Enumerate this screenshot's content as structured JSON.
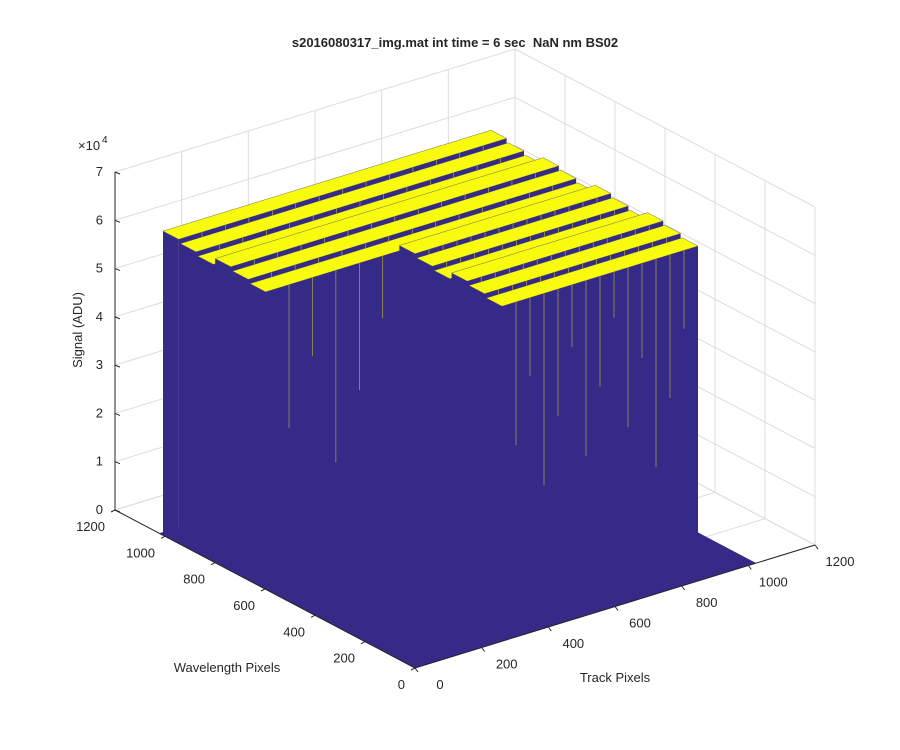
{
  "chart_data": {
    "type": "surface3d",
    "title": "s2016080317_img.mat int time = 6 sec  NaN nm BS02",
    "xlabel": "Track Pixels",
    "ylabel": "Wavelength Pixels",
    "zlabel": "Signal (ADU)",
    "z_exponent_base": "×10",
    "z_exponent": "4",
    "xlim": [
      0,
      1200
    ],
    "xticks": [
      0,
      200,
      400,
      600,
      800,
      1000,
      1200
    ],
    "ylim": [
      0,
      1200
    ],
    "yticks": [
      0,
      200,
      400,
      600,
      800,
      1000,
      1200
    ],
    "zlim": [
      0,
      70000
    ],
    "zticks": [
      0,
      {
        "value": 10000,
        "label": "1"
      },
      {
        "value": 20000,
        "label": "2"
      },
      {
        "value": 30000,
        "label": "3"
      },
      {
        "value": 40000,
        "label": "4"
      },
      {
        "value": 50000,
        "label": "5"
      },
      {
        "value": 60000,
        "label": "6"
      },
      {
        "value": 70000,
        "label": "7"
      }
    ],
    "grid": true,
    "colors": {
      "low": "#352a87",
      "high": "#f9fb0e"
    }
  }
}
